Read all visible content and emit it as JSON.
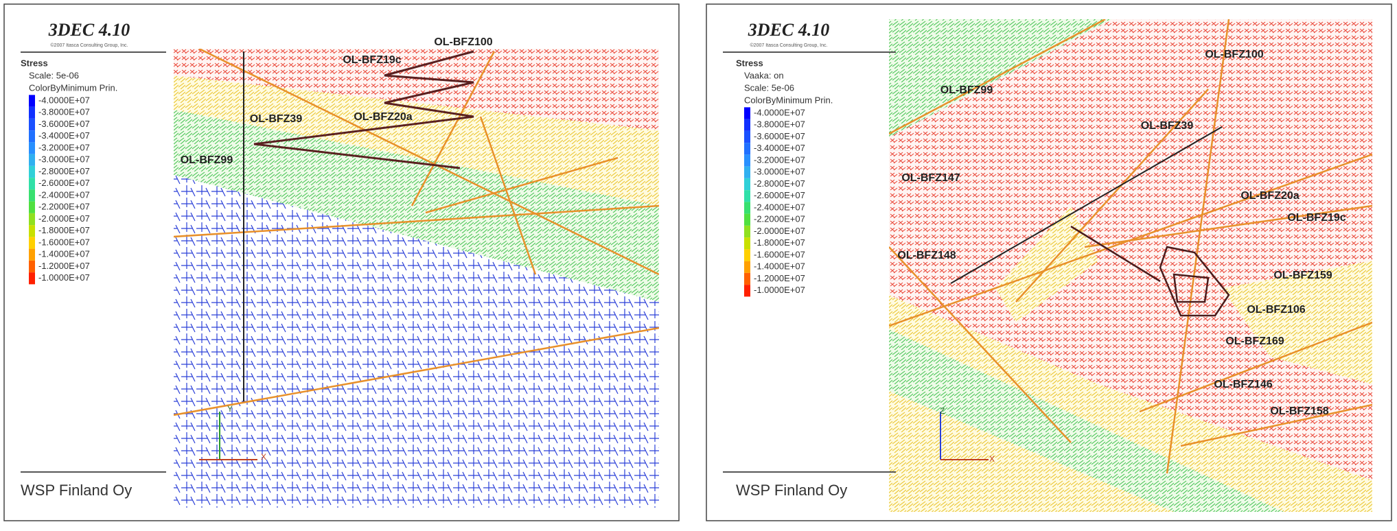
{
  "panels": [
    {
      "title": "3DEC 4.10",
      "copyright": "©2007 Itasca Consulting Group, Inc.",
      "legend": {
        "title": "Stress",
        "lines": [
          "Scale: 5e-06",
          "ColorByMinimum Prin."
        ],
        "labels": [
          "-4.0000E+07",
          "-3.8000E+07",
          "-3.6000E+07",
          "-3.4000E+07",
          "-3.2000E+07",
          "-3.0000E+07",
          "-2.8000E+07",
          "-2.6000E+07",
          "-2.4000E+07",
          "-2.2000E+07",
          "-2.0000E+07",
          "-1.8000E+07",
          "-1.6000E+07",
          "-1.4000E+07",
          "-1.2000E+07",
          "-1.0000E+07"
        ]
      },
      "footer": "WSP Finland Oy",
      "axes": [
        "Y",
        "X"
      ],
      "zones": [
        "OL-BFZ100",
        "OL-BFZ19c",
        "OL-BFZ39",
        "OL-BFZ20a",
        "OL-BFZ99"
      ]
    },
    {
      "title": "3DEC 4.10",
      "copyright": "©2007 Itasca Consulting Group, Inc.",
      "legend": {
        "title": "Stress",
        "lines": [
          "Vaaka: on",
          "Scale: 5e-06",
          "ColorByMinimum Prin."
        ],
        "labels": [
          "-4.0000E+07",
          "-3.8000E+07",
          "-3.6000E+07",
          "-3.4000E+07",
          "-3.2000E+07",
          "-3.0000E+07",
          "-2.8000E+07",
          "-2.6000E+07",
          "-2.4000E+07",
          "-2.2000E+07",
          "-2.0000E+07",
          "-1.8000E+07",
          "-1.6000E+07",
          "-1.4000E+07",
          "-1.2000E+07",
          "-1.0000E+07"
        ]
      },
      "footer": "WSP Finland Oy",
      "axes": [
        "Z",
        "X"
      ],
      "zones": [
        "OL-BFZ100",
        "OL-BFZ99",
        "OL-BFZ39",
        "OL-BFZ147",
        "OL-BFZ20a",
        "OL-BFZ19c",
        "OL-BFZ148",
        "OL-BFZ159",
        "OL-BFZ106",
        "OL-BFZ169",
        "OL-BFZ146",
        "OL-BFZ158"
      ]
    }
  ]
}
